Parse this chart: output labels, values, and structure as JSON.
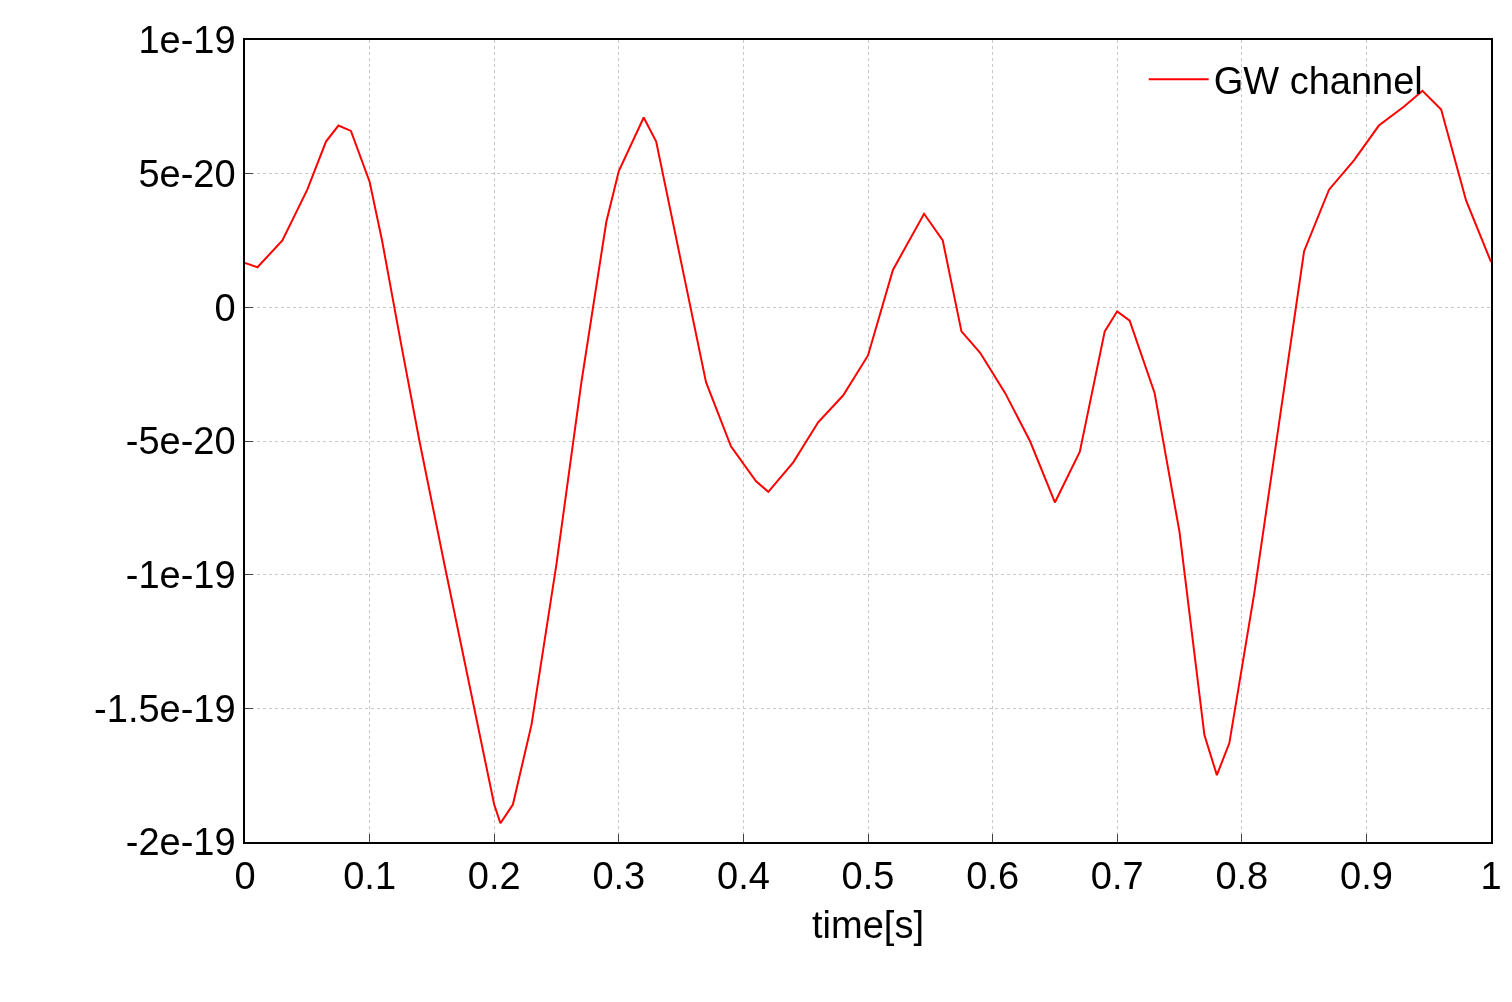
{
  "chart_data": {
    "type": "line",
    "xlabel": "time[s]",
    "x": [
      0,
      0.01,
      0.03,
      0.05,
      0.065,
      0.075,
      0.085,
      0.1,
      0.11,
      0.125,
      0.14,
      0.16,
      0.18,
      0.2,
      0.205,
      0.215,
      0.23,
      0.25,
      0.27,
      0.29,
      0.3,
      0.32,
      0.33,
      0.35,
      0.37,
      0.39,
      0.41,
      0.42,
      0.44,
      0.46,
      0.48,
      0.5,
      0.52,
      0.545,
      0.56,
      0.575,
      0.59,
      0.61,
      0.63,
      0.65,
      0.67,
      0.69,
      0.7,
      0.71,
      0.73,
      0.75,
      0.77,
      0.78,
      0.79,
      0.81,
      0.83,
      0.85,
      0.87,
      0.89,
      0.91,
      0.93,
      0.945,
      0.96,
      0.98,
      1.0
    ],
    "series": [
      {
        "name": "GW channel",
        "color": "#ff0000",
        "values": [
          1.66e-20,
          1.5e-20,
          2.5e-20,
          4.4e-20,
          6.2e-20,
          6.8e-20,
          6.6e-20,
          4.7e-20,
          2.5e-20,
          -1.3e-20,
          -5e-20,
          -9.6e-20,
          -1.41e-19,
          -1.86e-19,
          -1.93e-19,
          -1.86e-19,
          -1.56e-19,
          -9.6e-20,
          -2.8e-20,
          3.2e-20,
          5.1e-20,
          7.1e-20,
          6.2e-20,
          1.7e-20,
          -2.8e-20,
          -5.2e-20,
          -6.5e-20,
          -6.9e-20,
          -5.8e-20,
          -4.3e-20,
          -3.3e-20,
          -1.8e-20,
          1.4e-20,
          3.5e-20,
          2.5e-20,
          -9e-21,
          -1.7e-20,
          -3.2e-20,
          -5e-20,
          -7.3e-20,
          -5.4e-20,
          -9e-21,
          -1.5e-21,
          -5e-21,
          -3.2e-20,
          -8.4e-20,
          -1.6e-19,
          -1.75e-19,
          -1.63e-19,
          -1.07e-19,
          -4.3e-20,
          2.1e-20,
          4.4e-20,
          5.5e-20,
          6.8e-20,
          7.5e-20,
          8.1e-20,
          7.4e-20,
          4e-20,
          1.7e-20
        ]
      }
    ],
    "xlim": [
      0,
      1
    ],
    "xticks": [
      0,
      0.1,
      0.2,
      0.3,
      0.4,
      0.5,
      0.6,
      0.7,
      0.8,
      0.9,
      1
    ],
    "ylim": [
      -2e-19,
      1e-19
    ],
    "yticks": [
      {
        "value": -2e-19,
        "label": "-2e-19"
      },
      {
        "value": -1.5e-19,
        "label": "-1.5e-19"
      },
      {
        "value": -1e-19,
        "label": "-1e-19"
      },
      {
        "value": -5e-20,
        "label": "-5e-20"
      },
      0,
      {
        "value": 5e-20,
        "label": "5e-20"
      },
      {
        "value": 1e-19,
        "label": "1e-19"
      }
    ],
    "grid": true,
    "legend": "top right",
    "line_style": "solid",
    "marker": "none"
  }
}
